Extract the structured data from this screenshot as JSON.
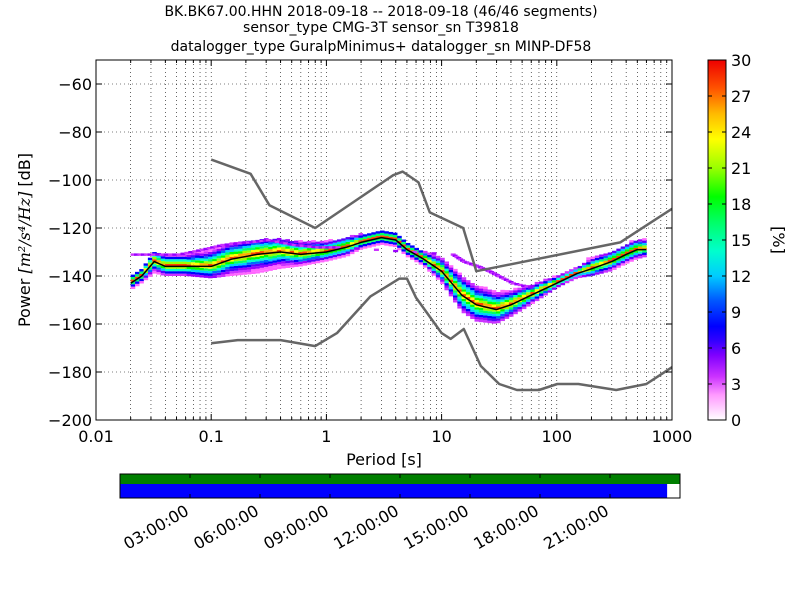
{
  "chart_data": {
    "type": "heatmap",
    "title_lines": [
      "BK.BK67.00.HHN   2018-09-18 -- 2018-09-18  (46/46 segments)",
      "sensor_type CMG-3T sensor_sn T39818",
      "datalogger_type GuralpMinimus+ datalogger_sn MINP-DF58"
    ],
    "xlabel": "Period [s]",
    "ylabel_prefix": "Power ",
    "ylabel_math": "[m²/s⁴/Hz]",
    "ylabel_suffix": " [dB]",
    "x_scale": "log",
    "xlim": [
      0.01,
      1000
    ],
    "ylim": [
      -200,
      -50
    ],
    "x_tick_labels": [
      "0.01",
      "0.1",
      "1",
      "10",
      "100",
      "1000"
    ],
    "y_tick_labels": [
      "−60",
      "−80",
      "−100",
      "−120",
      "−140",
      "−160",
      "−180",
      "−200"
    ],
    "y_tick_values": [
      -60,
      -80,
      -100,
      -120,
      -140,
      -160,
      -180,
      -200
    ],
    "grid": true,
    "colorbar": {
      "label": "[%]",
      "range": [
        0,
        30
      ],
      "tick_labels": [
        "0",
        "3",
        "6",
        "9",
        "12",
        "15",
        "18",
        "21",
        "24",
        "27",
        "30"
      ],
      "tick_values": [
        0,
        3,
        6,
        9,
        12,
        15,
        18,
        21,
        24,
        27,
        30
      ]
    },
    "noise_model_high": {
      "period": [
        0.1,
        0.22,
        0.32,
        0.8,
        3.8,
        4.6,
        6.3,
        7.9,
        15.4,
        20,
        354.8,
        1000
      ],
      "db": [
        -91.5,
        -97.4,
        -110.5,
        -120,
        -98,
        -96.5,
        -101,
        -113.5,
        -120,
        -138,
        -126,
        -112
      ]
    },
    "noise_model_low": {
      "period": [
        0.1,
        0.17,
        0.4,
        0.8,
        1.24,
        2.4,
        4.3,
        5,
        6,
        10,
        12,
        15.6,
        21.9,
        31.6,
        45,
        70,
        101,
        154,
        328,
        600,
        1000
      ],
      "db": [
        -168,
        -166.7,
        -166.7,
        -169.2,
        -163.7,
        -148.6,
        -141.1,
        -141.1,
        -149,
        -163.8,
        -166.2,
        -162.1,
        -177.5,
        -185,
        -187.5,
        -187.5,
        -185,
        -185,
        -187.5,
        -185,
        -178
      ]
    },
    "mode_line": {
      "period": [
        0.02,
        0.025,
        0.032,
        0.04,
        0.06,
        0.1,
        0.15,
        0.25,
        0.4,
        0.6,
        1,
        1.5,
        2,
        3,
        4,
        5,
        7,
        10,
        15,
        20,
        30,
        40,
        60,
        100,
        150,
        200,
        300,
        400,
        500,
        600
      ],
      "db": [
        -143,
        -140,
        -134,
        -136,
        -136,
        -136,
        -133,
        -131,
        -130,
        -131,
        -130,
        -128,
        -126,
        -124,
        -125,
        -129,
        -133,
        -138,
        -148,
        -152,
        -154,
        -152,
        -148,
        -143,
        -139,
        -137,
        -134,
        -131,
        -129,
        -129
      ]
    },
    "pdf_band": {
      "period": [
        0.02,
        0.025,
        0.032,
        0.04,
        0.06,
        0.1,
        0.15,
        0.25,
        0.4,
        0.6,
        1,
        1.5,
        2,
        3,
        4,
        5,
        7,
        10,
        15,
        20,
        30,
        40,
        60,
        100,
        150,
        200,
        300,
        400,
        500,
        600
      ],
      "db_low": [
        -146,
        -143,
        -139,
        -140,
        -140,
        -141,
        -140,
        -139,
        -137,
        -136,
        -134,
        -132,
        -129,
        -127,
        -128,
        -132,
        -136,
        -143,
        -155,
        -159,
        -160,
        -157,
        -152,
        -145,
        -141,
        -140,
        -138,
        -135,
        -133,
        -132
      ],
      "db_high": [
        -140,
        -137,
        -130,
        -131,
        -131,
        -129,
        -127,
        -125,
        -125,
        -126,
        -126,
        -124,
        -123,
        -121,
        -122,
        -126,
        -130,
        -133,
        -140,
        -144,
        -147,
        -146,
        -144,
        -140,
        -137,
        -132,
        -130,
        -127,
        -125,
        -125
      ]
    },
    "outliers_top": {
      "period": [
        0.02,
        0.03,
        0.05,
        0.08,
        0.12,
        0.2,
        0.3,
        0.5,
        0.8,
        1.2,
        12,
        15,
        20,
        25,
        30,
        40,
        60
      ],
      "db": [
        -131,
        -131,
        -131,
        -129,
        -127,
        -126,
        -125,
        -127,
        -128,
        -128,
        -131,
        -134,
        -136,
        -138,
        -140,
        -143,
        -145
      ]
    },
    "timeline": {
      "tick_labels": [
        "03:00:00",
        "06:00:00",
        "09:00:00",
        "12:00:00",
        "15:00:00",
        "18:00:00",
        "21:00:00"
      ],
      "tick_hours": [
        3,
        6,
        9,
        12,
        15,
        18,
        21
      ],
      "total_hours": 24,
      "coverage_fraction": 0.977,
      "top_color": "#007f00",
      "bottom_color": "#0000ff"
    }
  }
}
